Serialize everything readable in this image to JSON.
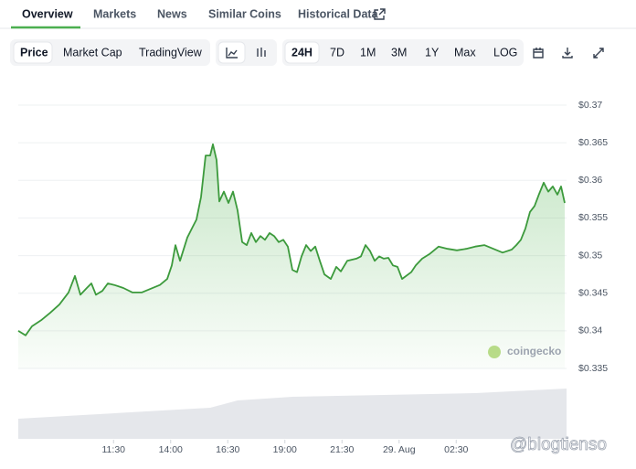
{
  "tabs": [
    "Overview",
    "Markets",
    "News",
    "Similar Coins",
    "Historical Data"
  ],
  "toolbar": {
    "views": [
      "Price",
      "Market Cap",
      "TradingView"
    ],
    "ranges": [
      "24H",
      "7D",
      "1M",
      "3M",
      "1Y",
      "Max",
      "LOG"
    ]
  },
  "brand": "coingecko",
  "watermark": "@blogtienso",
  "chart_data": {
    "type": "line",
    "color": "#3c9a3c",
    "grid": true,
    "x": [
      7.33,
      7.65,
      7.93,
      8.33,
      8.73,
      9.13,
      9.53,
      9.81,
      10.05,
      10.33,
      10.53,
      10.73,
      11.01,
      11.25,
      11.53,
      11.93,
      12.33,
      12.73,
      13.13,
      13.53,
      13.85,
      14.05,
      14.21,
      14.41,
      14.73,
      14.93,
      15.13,
      15.33,
      15.53,
      15.73,
      15.85,
      16.01,
      16.13,
      16.33,
      16.53,
      16.73,
      16.93,
      17.13,
      17.33,
      17.53,
      17.73,
      17.93,
      18.13,
      18.33,
      18.53,
      18.73,
      18.93,
      19.13,
      19.33,
      19.53,
      19.73,
      19.93,
      20.13,
      20.33,
      20.53,
      20.73,
      21.01,
      21.25,
      21.45,
      21.73,
      22.13,
      22.33,
      22.53,
      22.73,
      22.93,
      23.13,
      23.33,
      23.53,
      23.73,
      23.93,
      24.13,
      24.53,
      24.73,
      25.01,
      25.33,
      25.73,
      26.13,
      26.53,
      26.93,
      27.33,
      27.73,
      28.13,
      28.53,
      28.93,
      29.13,
      29.33,
      29.53,
      29.73,
      29.93,
      30.13,
      30.33,
      30.53,
      30.73,
      30.93,
      31.09,
      31.25
    ],
    "values": [
      0.34,
      0.3394,
      0.3406,
      0.3414,
      0.3424,
      0.3435,
      0.3451,
      0.3473,
      0.3448,
      0.3457,
      0.3463,
      0.3448,
      0.3453,
      0.3463,
      0.3461,
      0.3457,
      0.3451,
      0.3451,
      0.3456,
      0.3461,
      0.3469,
      0.3487,
      0.3514,
      0.3493,
      0.3524,
      0.3536,
      0.3548,
      0.3578,
      0.3633,
      0.3633,
      0.3648,
      0.3627,
      0.3572,
      0.3585,
      0.357,
      0.3585,
      0.356,
      0.3518,
      0.3514,
      0.353,
      0.3518,
      0.3526,
      0.3521,
      0.353,
      0.3526,
      0.3518,
      0.3521,
      0.3512,
      0.3481,
      0.3478,
      0.3499,
      0.3514,
      0.3506,
      0.3512,
      0.3493,
      0.3475,
      0.3469,
      0.3485,
      0.3479,
      0.3493,
      0.3496,
      0.3499,
      0.3514,
      0.3506,
      0.3493,
      0.3499,
      0.3496,
      0.3497,
      0.3487,
      0.3485,
      0.3469,
      0.3478,
      0.3487,
      0.3496,
      0.3502,
      0.3512,
      0.3509,
      0.3507,
      0.3509,
      0.3512,
      0.3514,
      0.3509,
      0.3504,
      0.3508,
      0.3514,
      0.3521,
      0.3536,
      0.3558,
      0.3566,
      0.3582,
      0.3597,
      0.3585,
      0.3592,
      0.3581,
      0.3592,
      0.357
    ],
    "xlim": [
      7.33,
      31.33
    ],
    "ylim": [
      0.335,
      0.37
    ],
    "xticks": [
      {
        "value": 11.5,
        "label": "11:30"
      },
      {
        "value": 14,
        "label": "14:00"
      },
      {
        "value": 16.5,
        "label": "16:30"
      },
      {
        "value": 19,
        "label": "19:00"
      },
      {
        "value": 21.5,
        "label": "21:30"
      },
      {
        "value": 24,
        "label": "29. Aug"
      },
      {
        "value": 26.5,
        "label": "02:30"
      }
    ],
    "yticks": [
      {
        "value": 0.335,
        "label": "$0.335"
      },
      {
        "value": 0.34,
        "label": "$0.34"
      },
      {
        "value": 0.345,
        "label": "$0.345"
      },
      {
        "value": 0.35,
        "label": "$0.35"
      },
      {
        "value": 0.355,
        "label": "$0.355"
      },
      {
        "value": 0.36,
        "label": "$0.36"
      },
      {
        "value": 0.365,
        "label": "$0.365"
      },
      {
        "value": 0.37,
        "label": "$0.37"
      }
    ]
  }
}
